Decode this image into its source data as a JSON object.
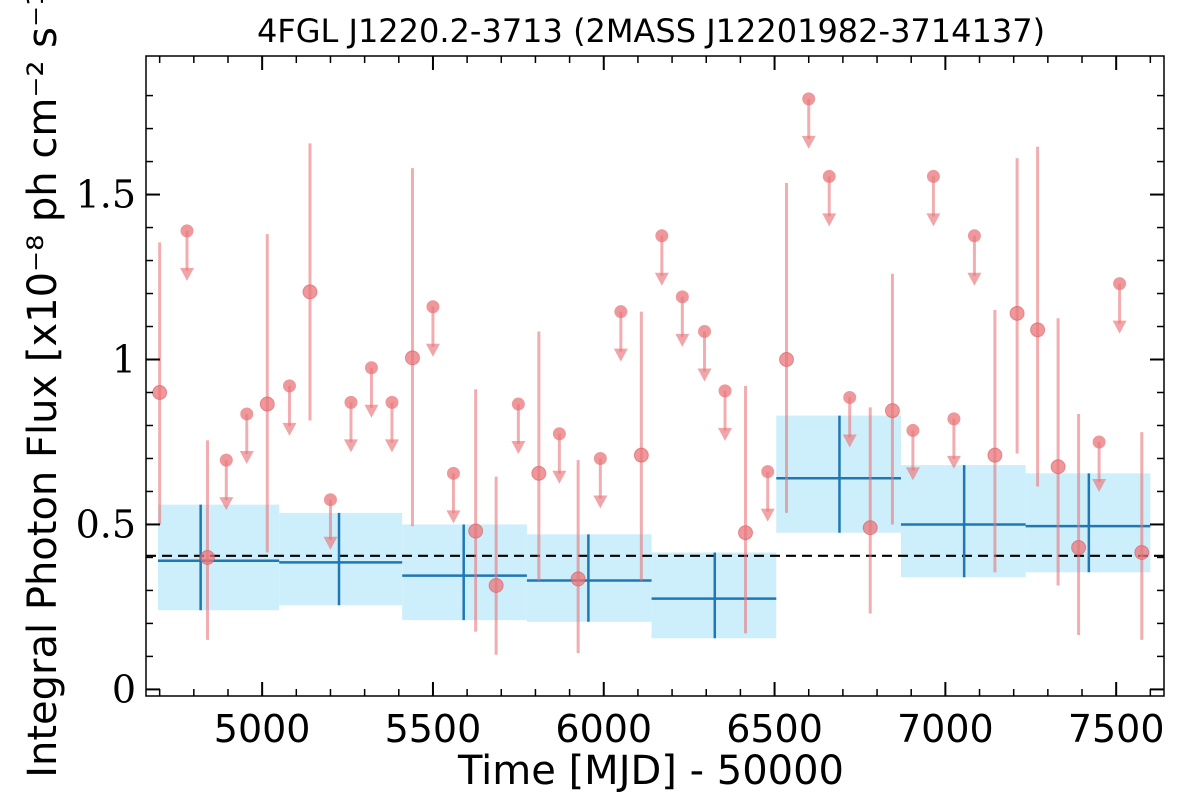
{
  "chart_data": {
    "type": "scatter",
    "title": "4FGL J1220.2-3713 (2MASS J12201982-3714137)",
    "xlabel": "Time [MJD] - 50000",
    "ylabel": "Integral Photon Flux [x10⁻⁸ ph cm⁻² s⁻¹]",
    "xlim": [
      4660,
      7640
    ],
    "ylim": [
      -0.02,
      1.92
    ],
    "x_ticks": [
      5000,
      5500,
      6000,
      6500,
      7000,
      7500
    ],
    "x_tick_labels": [
      "5000",
      "5500",
      "6000",
      "6500",
      "7000",
      "7500"
    ],
    "y_ticks": [
      0,
      0.5,
      1,
      1.5
    ],
    "y_tick_labels": [
      "0",
      "0.5",
      "1",
      "1.5"
    ],
    "average_flux": 0.405,
    "colors": {
      "points": "#e8767a",
      "bins": "#1f77b4",
      "bin_band": "#cdeefb",
      "average_line": "#000000"
    },
    "series": [
      {
        "type": "binned",
        "bins": [
          {
            "x": 4820,
            "x_lo": 4695,
            "x_hi": 5050,
            "y": 0.39,
            "y_lo": 0.24,
            "y_hi": 0.56
          },
          {
            "x": 5225,
            "x_lo": 5050,
            "x_hi": 5410,
            "y": 0.385,
            "y_lo": 0.255,
            "y_hi": 0.535
          },
          {
            "x": 5590,
            "x_lo": 5410,
            "x_hi": 5775,
            "y": 0.345,
            "y_lo": 0.21,
            "y_hi": 0.5
          },
          {
            "x": 5955,
            "x_lo": 5775,
            "x_hi": 6140,
            "y": 0.33,
            "y_lo": 0.205,
            "y_hi": 0.47
          },
          {
            "x": 6325,
            "x_lo": 6140,
            "x_hi": 6505,
            "y": 0.275,
            "y_lo": 0.155,
            "y_hi": 0.415
          },
          {
            "x": 6690,
            "x_lo": 6505,
            "x_hi": 6870,
            "y": 0.64,
            "y_lo": 0.475,
            "y_hi": 0.83
          },
          {
            "x": 7055,
            "x_lo": 6870,
            "x_hi": 7235,
            "y": 0.5,
            "y_lo": 0.34,
            "y_hi": 0.68
          },
          {
            "x": 7420,
            "x_lo": 7235,
            "x_hi": 7600,
            "y": 0.495,
            "y_lo": 0.355,
            "y_hi": 0.655
          }
        ]
      },
      {
        "type": "points",
        "detections": [
          {
            "x": 4700,
            "y": 0.9,
            "y_lo": 0.5,
            "y_hi": 1.355
          },
          {
            "x": 4840,
            "y": 0.4,
            "y_lo": 0.15,
            "y_hi": 0.755
          },
          {
            "x": 5015,
            "y": 0.865,
            "y_lo": 0.415,
            "y_hi": 1.38
          },
          {
            "x": 5140,
            "y": 1.205,
            "y_lo": 0.815,
            "y_hi": 1.655
          },
          {
            "x": 5440,
            "y": 1.005,
            "y_lo": 0.495,
            "y_hi": 1.58
          },
          {
            "x": 5625,
            "y": 0.48,
            "y_lo": 0.175,
            "y_hi": 0.91
          },
          {
            "x": 5685,
            "y": 0.315,
            "y_lo": 0.105,
            "y_hi": 0.645
          },
          {
            "x": 5810,
            "y": 0.655,
            "y_lo": 0.33,
            "y_hi": 1.085
          },
          {
            "x": 5925,
            "y": 0.335,
            "y_lo": 0.11,
            "y_hi": 0.695
          },
          {
            "x": 6110,
            "y": 0.71,
            "y_lo": 0.33,
            "y_hi": 1.145
          },
          {
            "x": 6415,
            "y": 0.475,
            "y_lo": 0.17,
            "y_hi": 0.92
          },
          {
            "x": 6535,
            "y": 1.0,
            "y_lo": 0.535,
            "y_hi": 1.535
          },
          {
            "x": 6780,
            "y": 0.49,
            "y_lo": 0.23,
            "y_hi": 0.855
          },
          {
            "x": 6845,
            "y": 0.845,
            "y_lo": 0.5,
            "y_hi": 1.26
          },
          {
            "x": 7145,
            "y": 0.71,
            "y_lo": 0.355,
            "y_hi": 1.15
          },
          {
            "x": 7210,
            "y": 1.14,
            "y_lo": 0.715,
            "y_hi": 1.61
          },
          {
            "x": 7270,
            "y": 1.09,
            "y_lo": 0.615,
            "y_hi": 1.645
          },
          {
            "x": 7330,
            "y": 0.675,
            "y_lo": 0.315,
            "y_hi": 1.125
          },
          {
            "x": 7390,
            "y": 0.43,
            "y_lo": 0.165,
            "y_hi": 0.835
          },
          {
            "x": 7575,
            "y": 0.415,
            "y_lo": 0.15,
            "y_hi": 0.78
          }
        ],
        "upper_limits": [
          {
            "x": 4780,
            "y": 1.39
          },
          {
            "x": 4895,
            "y": 0.695
          },
          {
            "x": 4955,
            "y": 0.835
          },
          {
            "x": 5080,
            "y": 0.92
          },
          {
            "x": 5200,
            "y": 0.575
          },
          {
            "x": 5260,
            "y": 0.87
          },
          {
            "x": 5320,
            "y": 0.975
          },
          {
            "x": 5380,
            "y": 0.87
          },
          {
            "x": 5500,
            "y": 1.16
          },
          {
            "x": 5560,
            "y": 0.655
          },
          {
            "x": 5750,
            "y": 0.865
          },
          {
            "x": 5870,
            "y": 0.775
          },
          {
            "x": 5990,
            "y": 0.7
          },
          {
            "x": 6050,
            "y": 1.145
          },
          {
            "x": 6170,
            "y": 1.375
          },
          {
            "x": 6230,
            "y": 1.19
          },
          {
            "x": 6295,
            "y": 1.085
          },
          {
            "x": 6355,
            "y": 0.905
          },
          {
            "x": 6480,
            "y": 0.66
          },
          {
            "x": 6600,
            "y": 1.79
          },
          {
            "x": 6660,
            "y": 1.555
          },
          {
            "x": 6720,
            "y": 0.885
          },
          {
            "x": 6905,
            "y": 0.785
          },
          {
            "x": 6965,
            "y": 1.555
          },
          {
            "x": 7025,
            "y": 0.82
          },
          {
            "x": 7085,
            "y": 1.375
          },
          {
            "x": 7450,
            "y": 0.75
          },
          {
            "x": 7510,
            "y": 1.23
          }
        ]
      }
    ],
    "grid": false,
    "legend": "none"
  }
}
